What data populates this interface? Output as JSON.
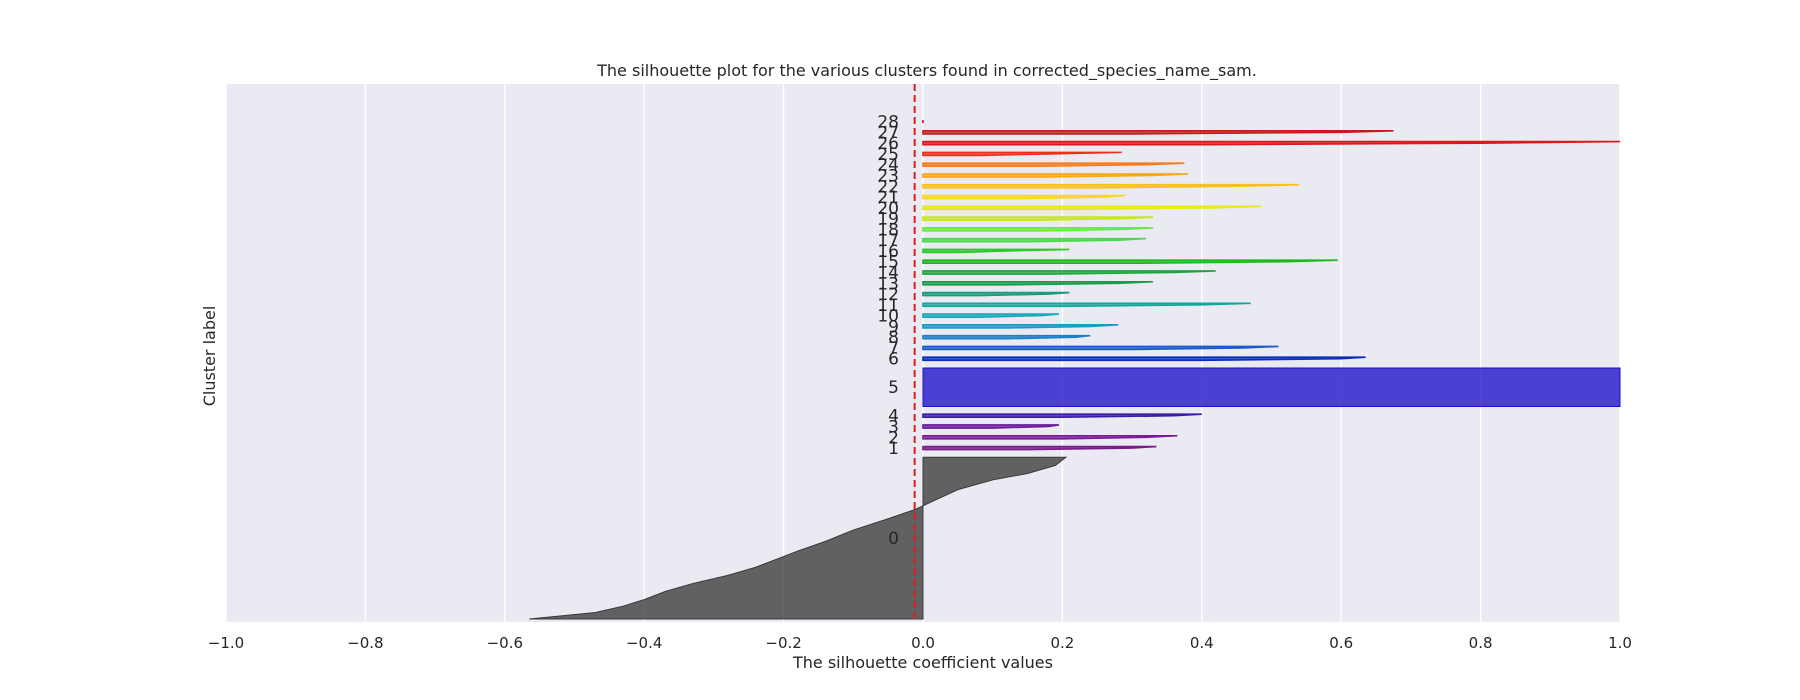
{
  "chart_data": {
    "type": "silhouette",
    "title": "The silhouette plot for the various clusters found in corrected_species_name_sam.",
    "xlabel": "The silhouette coefficient values",
    "ylabel": "Cluster label",
    "xlim": [
      -1.0,
      1.0
    ],
    "xticks": [
      -1.0,
      -0.8,
      -0.6,
      -0.4,
      -0.2,
      0.0,
      0.2,
      0.4,
      0.6,
      0.8,
      1.0
    ],
    "xtick_labels": [
      "−1.0",
      "−0.8",
      "−0.6",
      "−0.4",
      "−0.2",
      "0.0",
      "0.2",
      "0.4",
      "0.6",
      "0.8",
      "1.0"
    ],
    "average_silhouette_score": -0.012,
    "reference_line": {
      "style": "dashed",
      "color": "#e41a1c"
    },
    "grid": true,
    "background": "#eaeaf2",
    "clusters": [
      {
        "label": "0",
        "size": 210,
        "color": "#3a3a3a",
        "profile": [
          [
            0,
            0.205
          ],
          [
            0.05,
            0.19
          ],
          [
            0.1,
            0.15
          ],
          [
            0.14,
            0.1
          ],
          [
            0.2,
            0.05
          ],
          [
            0.26,
            0.02
          ],
          [
            0.32,
            -0.01
          ],
          [
            0.38,
            -0.05
          ],
          [
            0.45,
            -0.1
          ],
          [
            0.52,
            -0.14
          ],
          [
            0.58,
            -0.18
          ],
          [
            0.63,
            -0.21
          ],
          [
            0.68,
            -0.24
          ],
          [
            0.73,
            -0.28
          ],
          [
            0.78,
            -0.33
          ],
          [
            0.83,
            -0.37
          ],
          [
            0.88,
            -0.4
          ],
          [
            0.92,
            -0.43
          ],
          [
            0.96,
            -0.47
          ],
          [
            1.0,
            -0.565
          ]
        ]
      },
      {
        "label": "1",
        "size": 4,
        "color": "#7a1a8a",
        "profile": [
          [
            0,
            0.335
          ],
          [
            0.5,
            0.3
          ],
          [
            1,
            0.15
          ]
        ]
      },
      {
        "label": "2",
        "size": 4,
        "color": "#7a1a9a",
        "profile": [
          [
            0,
            0.365
          ],
          [
            0.5,
            0.32
          ],
          [
            1,
            0.2
          ]
        ]
      },
      {
        "label": "3",
        "size": 4,
        "color": "#6a1a9a",
        "profile": [
          [
            0,
            0.195
          ],
          [
            0.5,
            0.18
          ],
          [
            1,
            0.1
          ]
        ]
      },
      {
        "label": "4",
        "size": 4,
        "color": "#3a1aa8",
        "profile": [
          [
            0,
            0.4
          ],
          [
            0.5,
            0.36
          ],
          [
            1,
            0.2
          ]
        ]
      },
      {
        "label": "5",
        "size": 50,
        "color": "#1e10c8",
        "profile": [
          [
            0,
            1.0
          ],
          [
            1,
            1.0
          ]
        ]
      },
      {
        "label": "6",
        "size": 4,
        "color": "#0a2eb8",
        "profile": [
          [
            0,
            0.635
          ],
          [
            0.5,
            0.6
          ],
          [
            1,
            0.4
          ]
        ]
      },
      {
        "label": "7",
        "size": 4,
        "color": "#1a5ac8",
        "profile": [
          [
            0,
            0.51
          ],
          [
            0.5,
            0.46
          ],
          [
            1,
            0.3
          ]
        ]
      },
      {
        "label": "8",
        "size": 4,
        "color": "#1a7fc8",
        "profile": [
          [
            0,
            0.24
          ],
          [
            0.5,
            0.22
          ],
          [
            1,
            0.12
          ]
        ]
      },
      {
        "label": "9",
        "size": 4,
        "color": "#1a9ac8",
        "profile": [
          [
            0,
            0.28
          ],
          [
            0.5,
            0.24
          ],
          [
            1,
            0.12
          ]
        ]
      },
      {
        "label": "10",
        "size": 4,
        "color": "#18a8b8",
        "profile": [
          [
            0,
            0.195
          ],
          [
            0.5,
            0.17
          ],
          [
            1,
            0.08
          ]
        ]
      },
      {
        "label": "11",
        "size": 4,
        "color": "#10a89a",
        "profile": [
          [
            0,
            0.47
          ],
          [
            0.5,
            0.4
          ],
          [
            1,
            0.2
          ]
        ]
      },
      {
        "label": "12",
        "size": 4,
        "color": "#1a9a7a",
        "profile": [
          [
            0,
            0.21
          ],
          [
            0.5,
            0.18
          ],
          [
            1,
            0.08
          ]
        ]
      },
      {
        "label": "13",
        "size": 4,
        "color": "#1a9a4a",
        "profile": [
          [
            0,
            0.33
          ],
          [
            0.5,
            0.28
          ],
          [
            1,
            0.12
          ]
        ]
      },
      {
        "label": "14",
        "size": 4,
        "color": "#1aa83a",
        "profile": [
          [
            0,
            0.42
          ],
          [
            0.5,
            0.36
          ],
          [
            1,
            0.18
          ]
        ]
      },
      {
        "label": "15",
        "size": 4,
        "color": "#1ab81a",
        "profile": [
          [
            0,
            0.595
          ],
          [
            0.5,
            0.52
          ],
          [
            1,
            0.3
          ]
        ]
      },
      {
        "label": "16",
        "size": 4,
        "color": "#2ac82a",
        "profile": [
          [
            0,
            0.21
          ],
          [
            0.5,
            0.12
          ],
          [
            1,
            0.05
          ]
        ]
      },
      {
        "label": "17",
        "size": 4,
        "color": "#4ad84a",
        "profile": [
          [
            0,
            0.32
          ],
          [
            0.5,
            0.28
          ],
          [
            1,
            0.15
          ]
        ]
      },
      {
        "label": "18",
        "size": 4,
        "color": "#6ae84a",
        "profile": [
          [
            0,
            0.33
          ],
          [
            0.5,
            0.29
          ],
          [
            1,
            0.16
          ]
        ]
      },
      {
        "label": "19",
        "size": 4,
        "color": "#c8e81a",
        "profile": [
          [
            0,
            0.33
          ],
          [
            0.5,
            0.29
          ],
          [
            1,
            0.16
          ]
        ]
      },
      {
        "label": "20",
        "size": 4,
        "color": "#e8e81a",
        "profile": [
          [
            0,
            0.485
          ],
          [
            0.5,
            0.42
          ],
          [
            1,
            0.22
          ]
        ]
      },
      {
        "label": "21",
        "size": 4,
        "color": "#f8d81a",
        "profile": [
          [
            0,
            0.29
          ],
          [
            0.5,
            0.26
          ],
          [
            1,
            0.14
          ]
        ]
      },
      {
        "label": "22",
        "size": 4,
        "color": "#f8c01a",
        "profile": [
          [
            0,
            0.54
          ],
          [
            0.5,
            0.45
          ],
          [
            1,
            0.25
          ]
        ]
      },
      {
        "label": "23",
        "size": 4,
        "color": "#f8a81a",
        "profile": [
          [
            0,
            0.38
          ],
          [
            0.5,
            0.33
          ],
          [
            1,
            0.17
          ]
        ]
      },
      {
        "label": "24",
        "size": 4,
        "color": "#f87a1a",
        "profile": [
          [
            0,
            0.375
          ],
          [
            0.5,
            0.32
          ],
          [
            1,
            0.16
          ]
        ]
      },
      {
        "label": "25",
        "size": 4,
        "color": "#e8301a",
        "profile": [
          [
            0,
            0.285
          ],
          [
            0.5,
            0.18
          ],
          [
            1,
            0.08
          ]
        ]
      },
      {
        "label": "26",
        "size": 4,
        "color": "#d81a1a",
        "profile": [
          [
            0,
            1.0
          ],
          [
            0.5,
            0.8
          ],
          [
            1,
            0.4
          ]
        ]
      },
      {
        "label": "27",
        "size": 4,
        "color": "#c81a1a",
        "profile": [
          [
            0,
            0.675
          ],
          [
            0.5,
            0.6
          ],
          [
            1,
            0.3
          ]
        ]
      },
      {
        "label": "28",
        "size": 4,
        "color": "#b81a1a",
        "profile": [
          [
            0,
            0.0
          ],
          [
            1,
            0.0
          ]
        ]
      }
    ]
  }
}
